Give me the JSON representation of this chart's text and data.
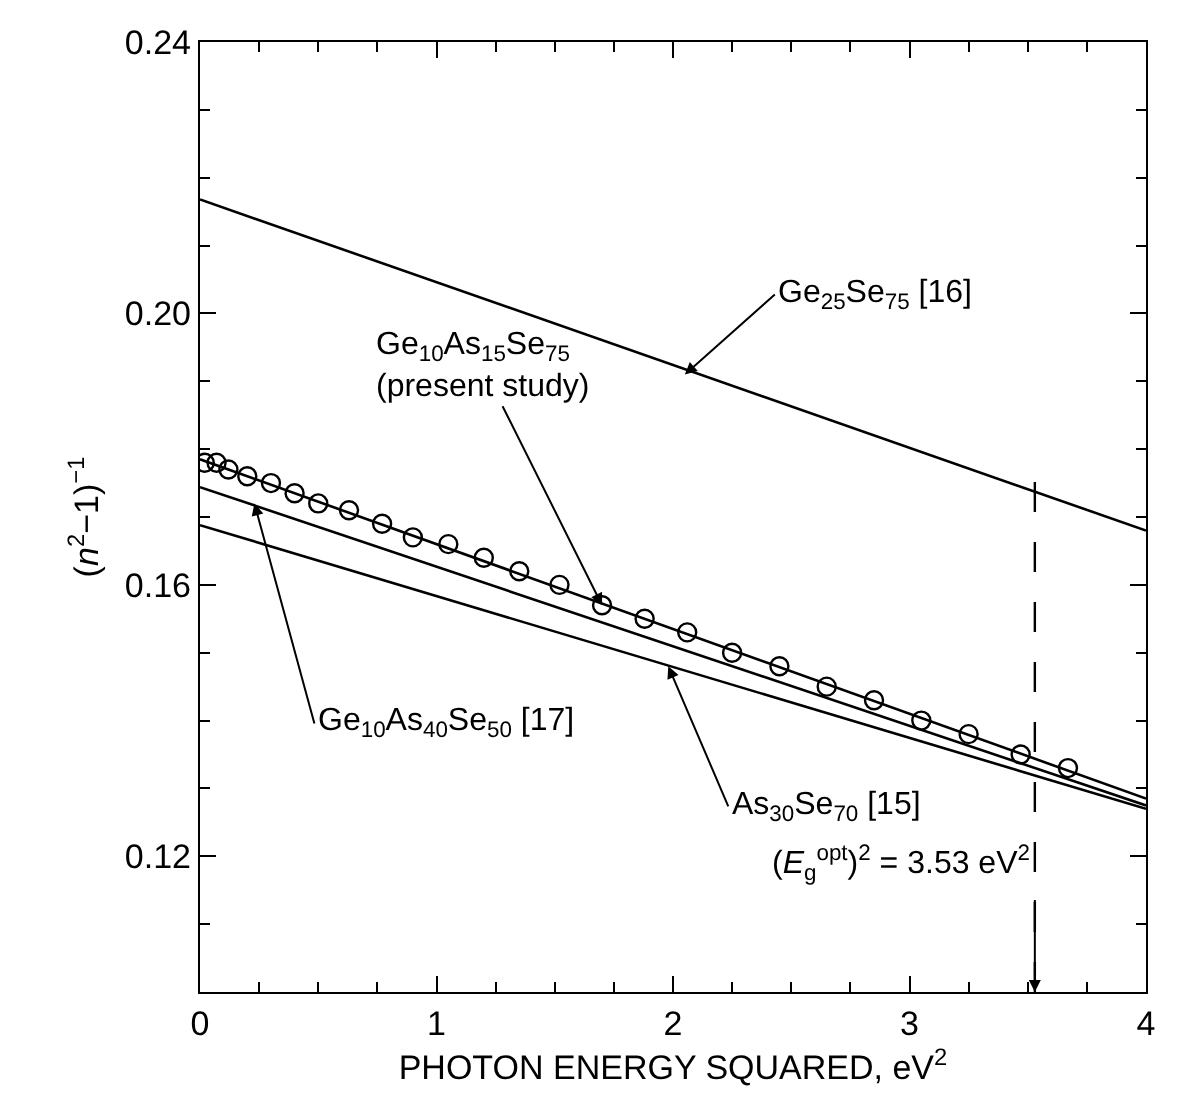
{
  "chart_data": {
    "type": "line",
    "xlabel": "PHOTON ENERGY SQUARED, eV$^{2}$",
    "ylabel": "(n$^{2}$−1)$^{−1}$",
    "xlim": [
      0,
      4
    ],
    "xticks": [
      0,
      1,
      2,
      3,
      4
    ],
    "ylim": [
      0.1,
      0.24
    ],
    "yticks": [
      {
        "value": 0.1,
        "label": null
      },
      0.12,
      0.16,
      {
        "value": 0.2,
        "label": "0.20"
      },
      0.24
    ],
    "series": [
      {
        "color": "#000000",
        "x": [
          0,
          4
        ],
        "values": [
          0.2168,
          0.168
        ]
      },
      {
        "color": "#000000",
        "x": [
          0,
          4
        ],
        "values": [
          0.1785,
          0.1285
        ]
      },
      {
        "color": "#000000",
        "x": [
          0,
          4
        ],
        "values": [
          0.1744,
          0.1275
        ]
      },
      {
        "color": "#000000",
        "x": [
          0,
          4
        ],
        "values": [
          0.1688,
          0.127
        ]
      },
      {
        "type": "scatter",
        "marker": "circle",
        "color": "#000000",
        "x": [
          0.02,
          0.07,
          0.12,
          0.2,
          0.3,
          0.4,
          0.5,
          0.63,
          0.77,
          0.9,
          1.05,
          1.2,
          1.35,
          1.52,
          1.7,
          1.88,
          2.06,
          2.25,
          2.45,
          2.65,
          2.85,
          3.05,
          3.25,
          3.47,
          3.67
        ],
        "values": [
          0.178,
          0.178,
          0.177,
          0.176,
          0.175,
          0.1735,
          0.172,
          0.171,
          0.169,
          0.167,
          0.166,
          0.164,
          0.162,
          0.16,
          0.157,
          0.155,
          0.153,
          0.15,
          0.148,
          0.145,
          0.143,
          0.14,
          0.138,
          0.135,
          0.133
        ]
      }
    ],
    "ref_lines": [
      {
        "axis": "x",
        "value": 3.53,
        "label": "(E$_{g}$$^{opt}$)$^{2}$ = 3.53 eV$^{2}$",
        "line_style": "dashed",
        "color": "#000000"
      }
    ],
    "annotations": [
      {
        "text": "Ge$_{25}$Se$_{75}$ [16]",
        "x": 2.05,
        "y": 0.191
      },
      {
        "text": "Ge$_{10}$As$_{15}$Se$_{75}$\n(present study)",
        "x": 1.7,
        "y": 0.157
      },
      {
        "text": "Ge$_{10}$As$_{40}$Se$_{50}$ [17]",
        "x": 0.23,
        "y": 0.172
      },
      {
        "text": "As$_{30}$Se$_{70}$ [15]",
        "x": 1.98,
        "y": 0.148
      }
    ]
  }
}
